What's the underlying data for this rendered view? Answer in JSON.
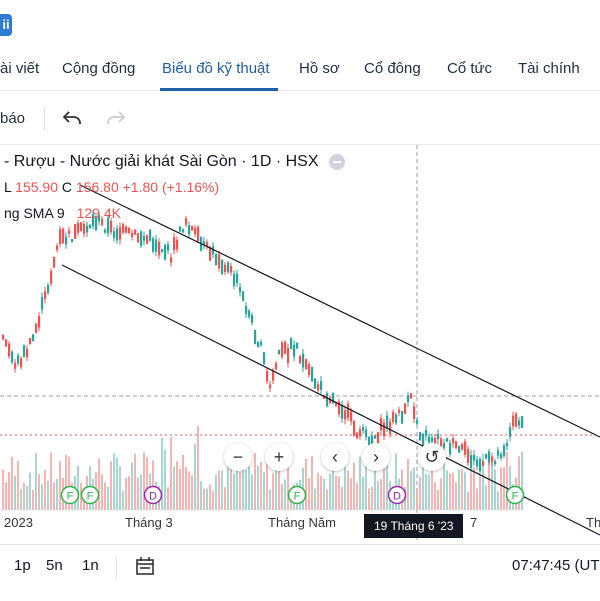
{
  "header": {
    "logo_text": "ii"
  },
  "tabs": [
    {
      "label": "ài viết"
    },
    {
      "label": "Cộng đồng"
    },
    {
      "label": "Biểu đồ kỹ thuật"
    },
    {
      "label": "Hồ sơ"
    },
    {
      "label": "Cổ đông"
    },
    {
      "label": "Cổ tức"
    },
    {
      "label": "Tài chính"
    }
  ],
  "active_tab": "Biểu đồ kỹ thuật",
  "toolbar": {
    "partial_label": "báo",
    "icons": [
      "undo-icon",
      "redo-icon"
    ]
  },
  "chart": {
    "title": "- Rượu - Nước giải khát Sài Gòn · 1D · HSX",
    "ohlc": {
      "l_label": "L",
      "l_value": "155.90",
      "c_label": "C",
      "c_value": "156.80",
      "change": "+1.80 (+1.16%)"
    },
    "volume_label": "ng SMA 9",
    "volume_value": "129.4K",
    "x_axis": [
      "2023",
      "Tháng 3",
      "Tháng Năm",
      "7",
      "Th"
    ],
    "crosshair_date": "19 Tháng 6 '23",
    "event_markers": [
      "F",
      "F",
      "D",
      "F",
      "D",
      "F"
    ],
    "colors": {
      "up": "#26a69a",
      "down": "#ef5350",
      "channel": "#131722"
    },
    "zoom_controls": [
      "−",
      "+",
      "‹",
      "›",
      "↺"
    ]
  },
  "bottom": {
    "timeframes": [
      "1p",
      "5n",
      "1n"
    ],
    "clock": "07:47:45 (UT"
  }
}
